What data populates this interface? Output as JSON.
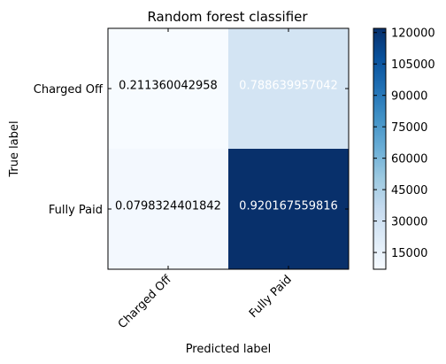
{
  "chart_data": {
    "type": "heatmap",
    "title": "Random forest classifier",
    "xlabel": "Predicted label",
    "ylabel": "True label",
    "x_categories": [
      "Charged Off",
      "Fully Paid"
    ],
    "y_categories": [
      "Charged Off",
      "Fully Paid"
    ],
    "cell_labels": [
      [
        "0.211360042958",
        "0.788639957042"
      ],
      [
        "0.0798324401842",
        "0.920167559816"
      ]
    ],
    "cell_levels": [
      [
        7000,
        28000
      ],
      [
        9500,
        122000
      ]
    ],
    "colorbar": {
      "range": [
        7000,
        122000
      ],
      "ticks": [
        "15000",
        "30000",
        "45000",
        "60000",
        "75000",
        "90000",
        "105000",
        "120000"
      ],
      "colormap": "Blues"
    },
    "colors": {
      "low": "#f7fbff",
      "high": "#08306b",
      "dark_text": "#000000",
      "light_text": "#ffffff"
    }
  }
}
